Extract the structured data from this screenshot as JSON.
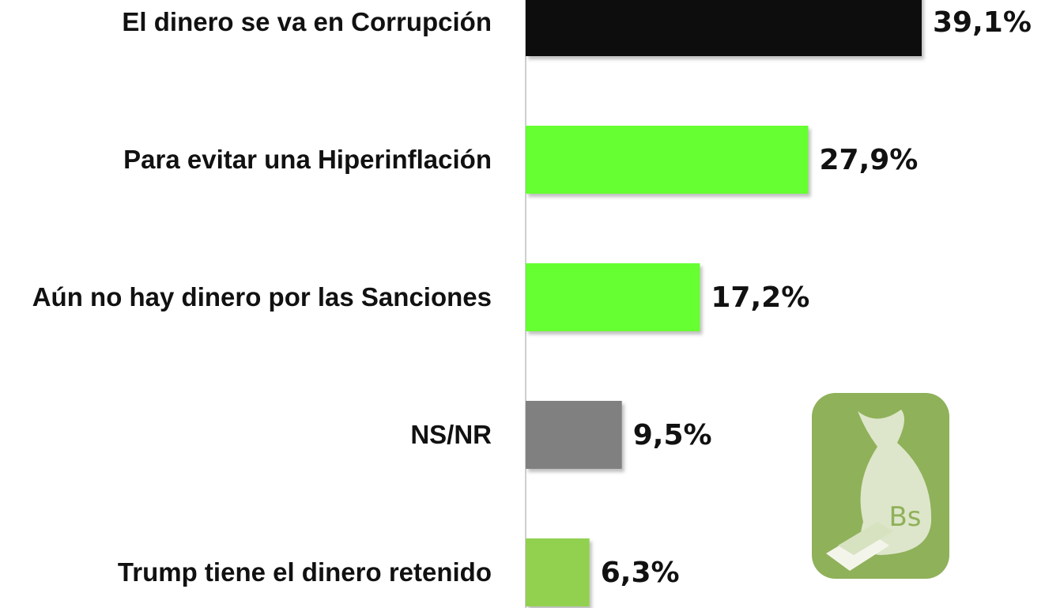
{
  "chart_data": {
    "type": "bar",
    "orientation": "horizontal",
    "categories": [
      "El dinero se va en Corrupción",
      "Para evitar una Hiperinflación",
      "Aún no hay dinero por las Sanciones",
      "NS/NR",
      "Trump tiene el dinero retenido"
    ],
    "values": [
      39.1,
      27.9,
      17.2,
      9.5,
      6.3
    ],
    "value_labels": [
      "39,1%",
      "27,9%",
      "17,2%",
      "9,5%",
      "6,3%"
    ],
    "colors": [
      "#111111",
      "#66ff33",
      "#66ff33",
      "#808080",
      "#92d050"
    ],
    "icon_text": "Bs"
  }
}
